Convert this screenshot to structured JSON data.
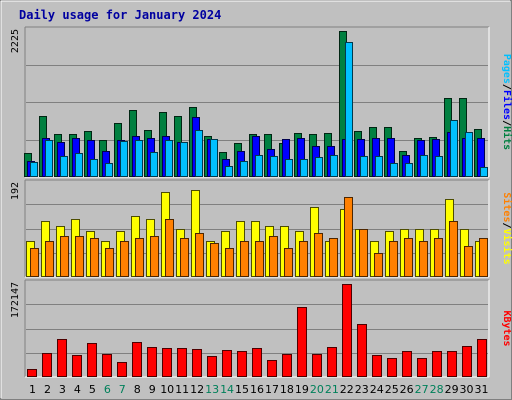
{
  "chart_data": {
    "type": "bar",
    "title": "Daily usage for January 2024",
    "categories": [
      "1",
      "2",
      "3",
      "4",
      "5",
      "6",
      "7",
      "8",
      "9",
      "10",
      "11",
      "12",
      "13",
      "14",
      "15",
      "16",
      "17",
      "18",
      "19",
      "20",
      "21",
      "22",
      "23",
      "24",
      "25",
      "26",
      "27",
      "28",
      "29",
      "30",
      "31"
    ],
    "weekend_days": [
      "6",
      "7",
      "13",
      "14",
      "20",
      "21",
      "27",
      "28"
    ],
    "panels": [
      {
        "name": "hits",
        "ymax_label": "2225",
        "ylim": [
          0,
          2225
        ],
        "right_label_parts": [
          "Pages",
          "Files",
          "Hits"
        ],
        "series": [
          {
            "name": "Hits",
            "color": "#008040",
            "values": [
              360,
              930,
              660,
              650,
              700,
              570,
              820,
              1020,
              710,
              990,
              930,
              1070,
              630,
              380,
              520,
              660,
              660,
              520,
              670,
              650,
              670,
              2225,
              700,
              760,
              760,
              390,
              590,
              610,
              1210,
              1210,
              730
            ]
          },
          {
            "name": "Files",
            "color": "#0000ff",
            "values": [
              240,
              590,
              530,
              590,
              560,
              390,
              570,
              620,
              590,
              620,
              540,
              920,
              580,
              270,
              390,
              620,
              420,
              580,
              590,
              480,
              480,
              580,
              580,
              590,
              590,
              330,
              570,
              580,
              690,
              590,
              600
            ]
          },
          {
            "name": "Pages",
            "color": "#00c0ff",
            "values": [
              230,
              570,
              320,
              360,
              280,
              220,
              550,
              560,
              380,
              560,
              540,
              710,
              580,
              170,
              250,
              330,
              320,
              280,
              270,
              300,
              330,
              2060,
              320,
              320,
              220,
              210,
              330,
              320,
              870,
              690,
              160
            ]
          }
        ]
      },
      {
        "name": "visits",
        "ymax_label": "192",
        "ylim": [
          0,
          192
        ],
        "right_label_parts": [
          "Sites",
          "Visits"
        ],
        "series": [
          {
            "name": "Visits",
            "color": "#ffff00",
            "values": [
              75,
              115,
              105,
              120,
              95,
              75,
              95,
              125,
              120,
              175,
              100,
              180,
              75,
              95,
              115,
              115,
              105,
              105,
              95,
              145,
              75,
              140,
              100,
              75,
              95,
              100,
              100,
              100,
              160,
              100,
              75
            ]
          },
          {
            "name": "Sites",
            "color": "#ff8000",
            "values": [
              60,
              75,
              85,
              85,
              80,
              60,
              75,
              80,
              85,
              120,
              80,
              90,
              70,
              60,
              75,
              75,
              85,
              60,
              75,
              90,
              80,
              165,
              100,
              50,
              75,
              80,
              75,
              80,
              115,
              65,
              80
            ]
          }
        ]
      },
      {
        "name": "kbytes",
        "ymax_label": "172147",
        "ylim": [
          0,
          172147
        ],
        "right_label_parts": [
          "KBytes"
        ],
        "series": [
          {
            "name": "KBytes",
            "color": "#ff0000",
            "values": [
              15000,
              45000,
              70000,
              40000,
              63000,
              42000,
              28000,
              64000,
              55000,
              54000,
              54000,
              52000,
              39000,
              50000,
              48000,
              54000,
              31000,
              43000,
              129000,
              43000,
              55000,
              172147,
              98000,
              40000,
              36000,
              48000,
              35000,
              48000,
              48000,
              58000,
              70000
            ]
          }
        ]
      }
    ],
    "grid": true
  }
}
